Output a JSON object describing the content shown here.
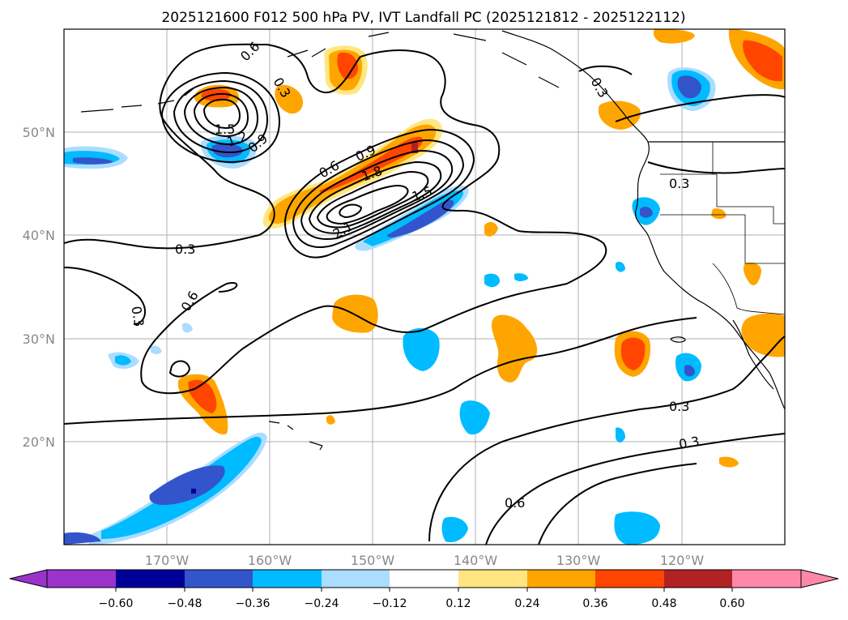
{
  "title": "2025121600 F012 500 hPa PV, IVT Landfall PC (2025121812 - 2025122112)",
  "axes": {
    "x_ticks": [
      "170°W",
      "160°W",
      "150°W",
      "140°W",
      "130°W",
      "120°W"
    ],
    "y_ticks": [
      "50°N",
      "40°N",
      "30°N",
      "20°N"
    ]
  },
  "colorbar": {
    "ticks": [
      "−0.60",
      "−0.48",
      "−0.36",
      "−0.24",
      "−0.12",
      "0.12",
      "0.24",
      "0.36",
      "0.48",
      "0.60"
    ],
    "colors": [
      "#9933cc",
      "#000099",
      "#3355cc",
      "#00bbff",
      "#aaddff",
      "#ffffff",
      "#ffe680",
      "#ffa500",
      "#ff4500",
      "#b22222",
      "#ff88aa"
    ]
  },
  "contour_labels": [
    {
      "text": "0.6"
    },
    {
      "text": "0.3"
    },
    {
      "text": "1.5"
    },
    {
      "text": "1.2"
    },
    {
      "text": "0.9"
    },
    {
      "text": "0.6"
    },
    {
      "text": "0.9"
    },
    {
      "text": "1.8"
    },
    {
      "text": "1.5"
    },
    {
      "text": "2.1"
    },
    {
      "text": "0.3"
    },
    {
      "text": "0.6"
    },
    {
      "text": "0.3"
    },
    {
      "text": "0.3"
    },
    {
      "text": "0.3"
    },
    {
      "text": "0.3"
    },
    {
      "text": "0.3"
    },
    {
      "text": "0.6"
    }
  ]
}
